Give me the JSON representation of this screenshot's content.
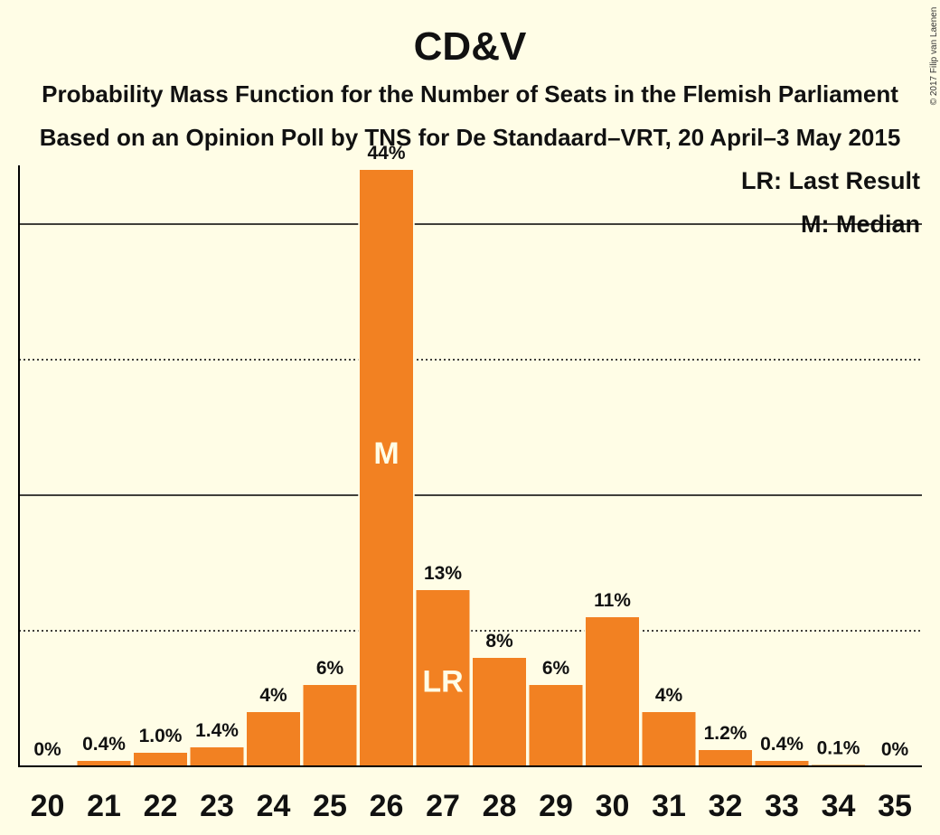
{
  "chart_data": {
    "type": "bar",
    "title": "CD&V",
    "subtitle_line1": "Probability Mass Function for the Number of Seats in the Flemish Parliament",
    "subtitle_line2": "Based on an Opinion Poll by TNS for De Standaard–VRT, 20 April–3 May 2015",
    "categories": [
      "20",
      "21",
      "22",
      "23",
      "24",
      "25",
      "26",
      "27",
      "28",
      "29",
      "30",
      "31",
      "32",
      "33",
      "34",
      "35"
    ],
    "values": [
      0,
      0.4,
      1.0,
      1.4,
      4,
      6,
      44,
      13,
      8,
      6,
      11,
      4,
      1.2,
      0.4,
      0.1,
      0
    ],
    "value_labels": [
      "0%",
      "0.4%",
      "1.0%",
      "1.4%",
      "4%",
      "6%",
      "44%",
      "13%",
      "8%",
      "6%",
      "11%",
      "4%",
      "1.2%",
      "0.4%",
      "0.1%",
      "0%"
    ],
    "ylim": [
      0,
      47.5
    ],
    "solid_gridlines": [
      20,
      40
    ],
    "dotted_gridlines": [
      10,
      30
    ],
    "markers": [
      {
        "category": "26",
        "text": "M"
      },
      {
        "category": "27",
        "text": "LR"
      }
    ],
    "legend": [
      "LR: Last Result",
      "M: Median"
    ],
    "legend_placement": "top-right",
    "bar_color": "#f28122",
    "background_color": "#fffde6"
  },
  "credit": "© 2017 Filip van Laenen"
}
